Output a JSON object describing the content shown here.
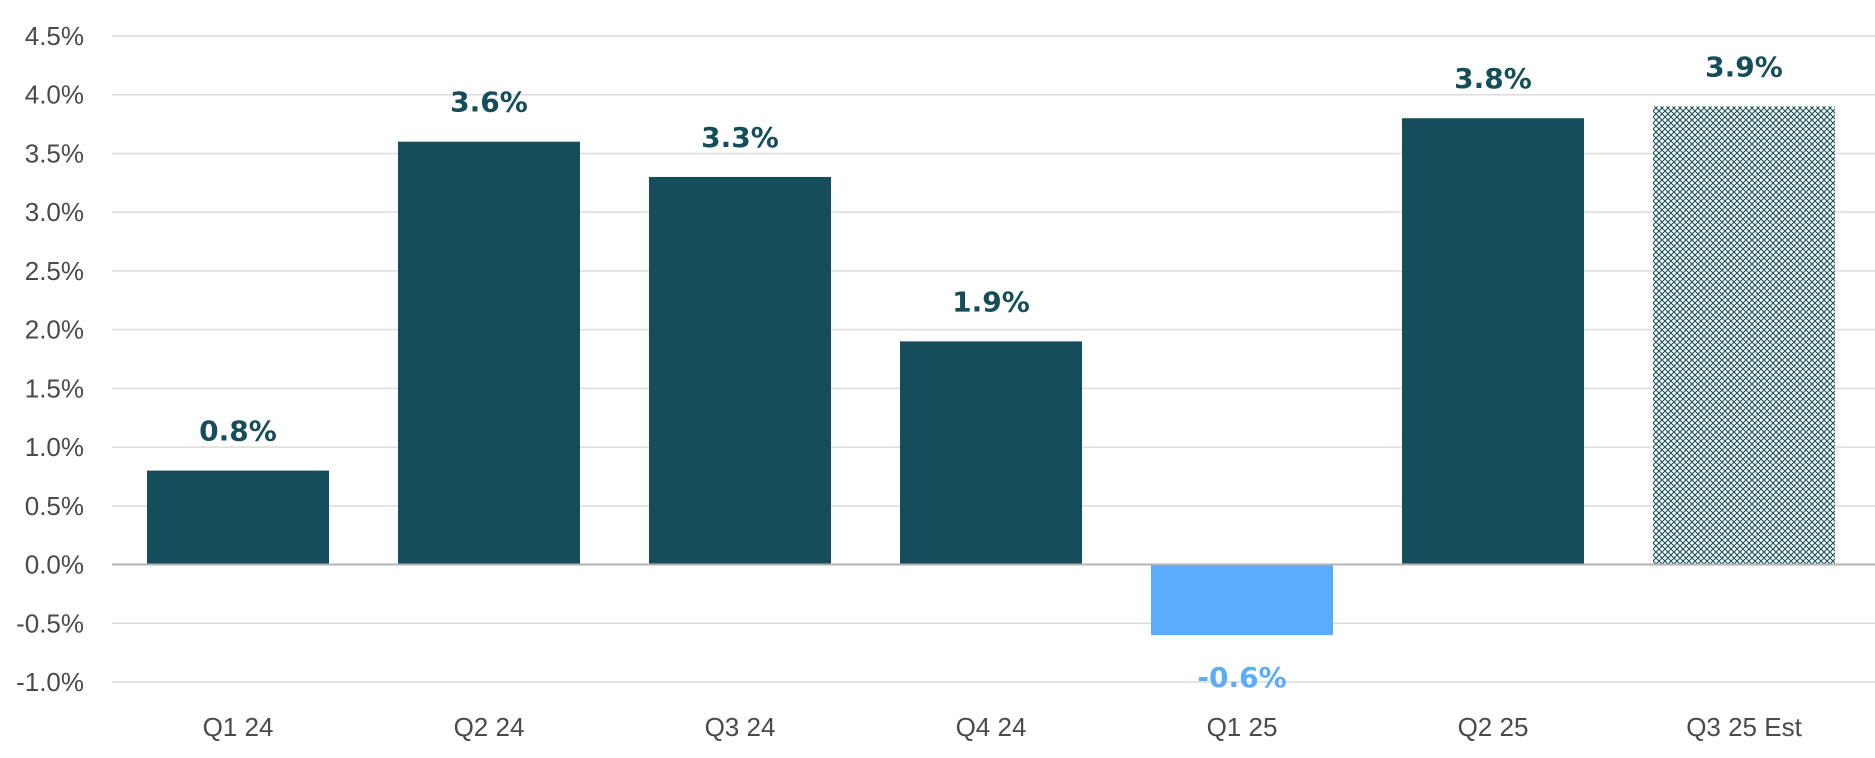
{
  "chart_data": {
    "type": "bar",
    "categories": [
      "Q1 24",
      "Q2 24",
      "Q3 24",
      "Q4 24",
      "Q1 25",
      "Q2 25",
      "Q3 25 Est"
    ],
    "values": [
      0.8,
      3.6,
      3.3,
      1.9,
      -0.6,
      3.8,
      3.9
    ],
    "data_labels": [
      "0.8%",
      "3.6%",
      "3.3%",
      "1.9%",
      "-0.6%",
      "3.8%",
      "3.9%"
    ],
    "estimate_categories": [
      "Q3 25 Est"
    ],
    "ylim": [
      -1.0,
      4.5
    ],
    "y_ticks": [
      4.5,
      4.0,
      3.5,
      3.0,
      2.5,
      2.0,
      1.5,
      1.0,
      0.5,
      0.0,
      -0.5,
      -1.0
    ],
    "y_tick_labels": [
      "4.5%",
      "4.0%",
      "3.5%",
      "3.0%",
      "2.5%",
      "2.0%",
      "1.5%",
      "1.0%",
      "0.5%",
      "0.0%",
      "-0.5%",
      "-1.0%"
    ],
    "title": "",
    "xlabel": "",
    "ylabel": "",
    "grid": true,
    "legend": "none",
    "colors": {
      "positive": "#154e5a",
      "negative": "#5aacfc",
      "estimate_pattern": "#154e5a",
      "grid": "#dcdcdc",
      "axis": "#b3b3b3",
      "tick_text": "#4a4a4a"
    }
  }
}
